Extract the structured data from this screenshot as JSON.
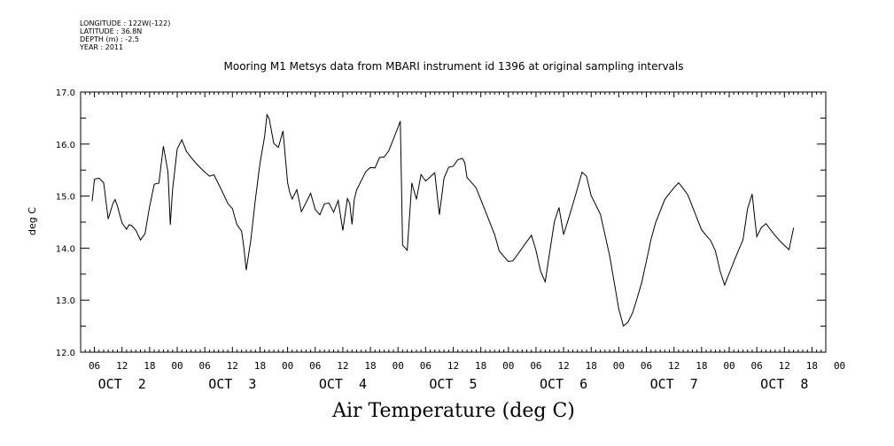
{
  "header": {
    "longitude": "LONGITUDE : 122W(-122)",
    "latitude": "LATITUDE : 36.8N",
    "depth": "DEPTH (m) : -2.5",
    "year": "YEAR : 2011"
  },
  "chart_data": {
    "type": "line",
    "title": "Mooring M1 Metsys data from MBARI instrument id 1396 at original sampling intervals",
    "footer_title": "Air Temperature (deg C)",
    "ylabel": "deg C",
    "ylim": [
      12.0,
      17.0
    ],
    "yticks": [
      "12.0",
      "13.0",
      "14.0",
      "15.0",
      "16.0",
      "17.0"
    ],
    "xlim_hours": [
      3,
      165
    ],
    "hour_tick_labels": [
      "06",
      "12",
      "18",
      "00",
      "06",
      "12",
      "18",
      "00",
      "06",
      "12",
      "18",
      "00",
      "06",
      "12",
      "18",
      "00",
      "06",
      "12",
      "18",
      "00",
      "06",
      "12",
      "18",
      "00",
      "06",
      "12",
      "18",
      "00"
    ],
    "day_labels": [
      "OCT  2",
      "OCT  3",
      "OCT  4",
      "OCT  5",
      "OCT  6",
      "OCT  7",
      "OCT  8"
    ],
    "grid": false,
    "series": [
      {
        "x_hours_since_oct2_00": [
          5.5,
          6,
          7,
          8,
          9,
          10,
          10.5,
          11,
          12,
          13,
          13.5,
          14,
          15,
          16,
          17,
          18,
          19,
          20,
          21,
          22,
          22.5,
          23,
          24,
          25,
          26,
          27,
          28,
          29,
          30,
          31,
          32,
          33,
          34,
          35,
          36,
          37,
          38,
          38.5,
          39,
          40,
          41,
          42,
          43,
          43.5,
          44,
          45,
          46,
          47,
          48,
          48.5,
          49,
          50,
          51,
          52,
          53,
          54,
          55,
          56,
          57,
          58,
          59,
          60,
          61,
          61.5,
          62,
          62.5,
          63,
          64,
          65,
          66,
          67,
          68,
          69,
          70,
          71,
          72,
          72.5,
          73,
          74,
          75,
          76,
          77,
          78,
          79,
          80,
          81,
          82,
          83,
          84,
          85,
          86,
          86.5,
          87,
          88,
          89,
          90,
          91,
          92,
          93,
          94,
          95,
          96,
          97,
          98,
          99,
          100,
          101,
          102,
          103,
          104,
          105,
          106,
          107,
          108,
          109,
          110,
          111,
          112,
          113,
          114,
          115,
          116,
          117,
          118,
          119,
          120,
          121,
          122,
          123,
          124,
          125,
          126,
          127,
          128,
          129,
          130,
          131,
          132,
          133,
          134,
          135,
          136,
          137,
          138,
          139,
          140,
          141,
          142,
          143,
          144,
          145,
          146,
          147,
          148,
          149,
          150,
          151,
          152,
          153,
          154,
          155,
          156,
          157,
          158,
          159,
          160,
          161,
          162,
          163,
          164,
          165
        ],
        "values": [
          14.9,
          15.3,
          15.3,
          15.2,
          14.5,
          14.8,
          14.9,
          14.8,
          14.5,
          14.4,
          14.5,
          14.5,
          14.4,
          14.2,
          14.3,
          14.8,
          15.2,
          15.2,
          15.9,
          15.4,
          14.4,
          15.1,
          15.9,
          16.1,
          15.9,
          15.8,
          15.7,
          15.6,
          15.5,
          15.4,
          15.4,
          15.2,
          15.0,
          14.8,
          14.7,
          14.4,
          14.3,
          14.0,
          13.6,
          14.2,
          15.0,
          15.7,
          16.2,
          16.6,
          16.5,
          16.0,
          15.9,
          16.2,
          15.2,
          15.0,
          14.9,
          15.1,
          14.7,
          14.9,
          15.1,
          14.8,
          14.7,
          14.9,
          14.9,
          14.7,
          14.9,
          14.3,
          14.9,
          14.8,
          14.4,
          14.9,
          15.1,
          15.3,
          15.5,
          15.6,
          15.6,
          15.8,
          15.8,
          15.9,
          16.1,
          16.3,
          16.4,
          14.0,
          13.9,
          15.2,
          14.9,
          15.4,
          15.3,
          15.4,
          15.5,
          14.7,
          15.4,
          15.6,
          15.6,
          15.7,
          15.7,
          15.6,
          15.3,
          15.2,
          15.1,
          14.9,
          14.7,
          14.5,
          14.3,
          14.0,
          13.9,
          13.8,
          13.8,
          13.9,
          14.0,
          14.1,
          14.2,
          13.9,
          13.5,
          13.3,
          13.9,
          14.5,
          14.8,
          14.3,
          14.6,
          14.9,
          15.2,
          15.5,
          15.4,
          15.0,
          14.8,
          14.6,
          14.2,
          13.8,
          13.3,
          12.8,
          12.5,
          12.6,
          12.8,
          13.1,
          13.4,
          13.8,
          14.2,
          14.5,
          14.7,
          14.9,
          15.0,
          15.1,
          15.2,
          15.1,
          15.0,
          14.8,
          14.6,
          14.4,
          14.3,
          14.2,
          14.0,
          13.6,
          13.3,
          13.5,
          13.7,
          13.9,
          14.1,
          14.7,
          15.0,
          14.2,
          14.4,
          14.5,
          14.4,
          14.3,
          14.2,
          14.1,
          14.0,
          14.4
        ]
      }
    ]
  }
}
